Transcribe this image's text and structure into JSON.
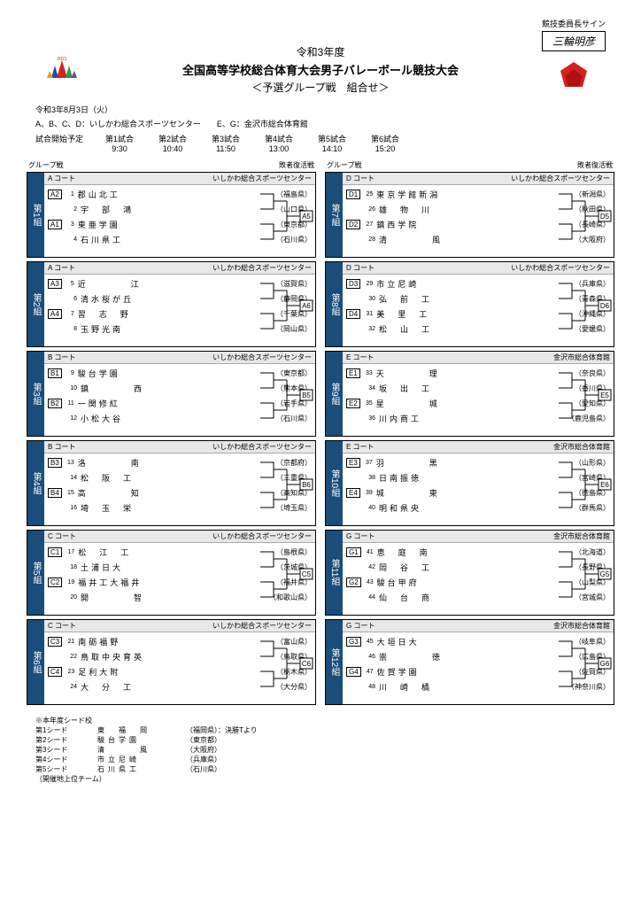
{
  "signature_label": "競技委員長サイン",
  "signature_value": "三輪明彦",
  "year_line": "令和3年度",
  "title": "全国高等学校総合体育大会男子バレーボール競技大会",
  "subtitle": "＜予選グループ戦　組合せ＞",
  "date": "令和3年8月3日（火）",
  "venue_line": "A、B、C、D：いしかわ総合スポーツセンター　　E、G：金沢市総合体育館",
  "schedule_label": "試合開始予定",
  "schedule": [
    {
      "label": "第1試合",
      "time": "9:30"
    },
    {
      "label": "第2試合",
      "time": "10:40"
    },
    {
      "label": "第3試合",
      "time": "11:50"
    },
    {
      "label": "第4試合",
      "time": "13:00"
    },
    {
      "label": "第5試合",
      "time": "14:10"
    },
    {
      "label": "第6試合",
      "time": "15:20"
    }
  ],
  "col_headers": {
    "left": "グループ戦",
    "right": "敗者復活戦"
  },
  "venues": {
    "ishikawa": "いしかわ総合スポーツセンター",
    "kanazawa": "金沢市総合体育館"
  },
  "left_groups": [
    {
      "label": "第1組",
      "court": "A コート",
      "venue": "ishikawa",
      "adv": "A5",
      "pairs": [
        {
          "seed": "A2",
          "teams": [
            {
              "n": "1",
              "name": "郡山北工",
              "pref": "福島県"
            },
            {
              "n": "2",
              "name": "宇部鴻",
              "pref": "山口県"
            }
          ]
        },
        {
          "seed": "A1",
          "teams": [
            {
              "n": "3",
              "name": "東亜学園",
              "pref": "東京都"
            },
            {
              "n": "4",
              "name": "石川県工",
              "pref": "石川県"
            }
          ]
        }
      ]
    },
    {
      "label": "第2組",
      "court": "A コート",
      "venue": "ishikawa",
      "adv": "A6",
      "pairs": [
        {
          "seed": "A3",
          "teams": [
            {
              "n": "5",
              "name": "近江",
              "pref": "滋賀県"
            },
            {
              "n": "6",
              "name": "清水桜が丘",
              "pref": "静岡県"
            }
          ]
        },
        {
          "seed": "A4",
          "teams": [
            {
              "n": "7",
              "name": "習志野",
              "pref": "千葉県"
            },
            {
              "n": "8",
              "name": "玉野光南",
              "pref": "岡山県"
            }
          ]
        }
      ]
    },
    {
      "label": "第3組",
      "court": "B コート",
      "venue": "ishikawa",
      "adv": "B5",
      "pairs": [
        {
          "seed": "B1",
          "teams": [
            {
              "n": "9",
              "name": "駿台学園",
              "pref": "東京都"
            },
            {
              "n": "10",
              "name": "鎮西",
              "pref": "熊本県"
            }
          ]
        },
        {
          "seed": "B2",
          "teams": [
            {
              "n": "11",
              "name": "一関修紅",
              "pref": "岩手県"
            },
            {
              "n": "12",
              "name": "小松大谷",
              "pref": "石川県"
            }
          ]
        }
      ]
    },
    {
      "label": "第4組",
      "court": "B コート",
      "venue": "ishikawa",
      "adv": "B6",
      "pairs": [
        {
          "seed": "B3",
          "teams": [
            {
              "n": "13",
              "name": "洛南",
              "pref": "京都府"
            },
            {
              "n": "14",
              "name": "松阪工",
              "pref": "三重県"
            }
          ]
        },
        {
          "seed": "B4",
          "teams": [
            {
              "n": "15",
              "name": "高知",
              "pref": "高知県"
            },
            {
              "n": "16",
              "name": "埼玉栄",
              "pref": "埼玉県"
            }
          ]
        }
      ]
    },
    {
      "label": "第5組",
      "court": "C コート",
      "venue": "ishikawa",
      "adv": "C5",
      "pairs": [
        {
          "seed": "C1",
          "teams": [
            {
              "n": "17",
              "name": "松江工",
              "pref": "島根県"
            },
            {
              "n": "18",
              "name": "土浦日大",
              "pref": "茨城県"
            }
          ]
        },
        {
          "seed": "C2",
          "teams": [
            {
              "n": "19",
              "name": "福井工大福井",
              "pref": "福井県"
            },
            {
              "n": "20",
              "name": "開智",
              "pref": "和歌山県"
            }
          ]
        }
      ]
    },
    {
      "label": "第6組",
      "court": "C コート",
      "venue": "ishikawa",
      "adv": "C6",
      "pairs": [
        {
          "seed": "C3",
          "teams": [
            {
              "n": "21",
              "name": "南砺福野",
              "pref": "富山県"
            },
            {
              "n": "22",
              "name": "鳥取中央育英",
              "pref": "鳥取県"
            }
          ]
        },
        {
          "seed": "C4",
          "teams": [
            {
              "n": "23",
              "name": "足利大附",
              "pref": "栃木県"
            },
            {
              "n": "24",
              "name": "大分工",
              "pref": "大分県"
            }
          ]
        }
      ]
    }
  ],
  "right_groups": [
    {
      "label": "第7組",
      "court": "D コート",
      "venue": "ishikawa",
      "adv": "D5",
      "pairs": [
        {
          "seed": "D1",
          "teams": [
            {
              "n": "25",
              "name": "東京学館新潟",
              "pref": "新潟県"
            },
            {
              "n": "26",
              "name": "雄物川",
              "pref": "秋田県"
            }
          ]
        },
        {
          "seed": "D2",
          "teams": [
            {
              "n": "27",
              "name": "鎮西学院",
              "pref": "長崎県"
            },
            {
              "n": "28",
              "name": "清風",
              "pref": "大阪府"
            }
          ]
        }
      ]
    },
    {
      "label": "第8組",
      "court": "D コート",
      "venue": "ishikawa",
      "adv": "D6",
      "pairs": [
        {
          "seed": "D3",
          "teams": [
            {
              "n": "29",
              "name": "市立尼崎",
              "pref": "兵庫県"
            },
            {
              "n": "30",
              "name": "弘前工",
              "pref": "青森県"
            }
          ]
        },
        {
          "seed": "D4",
          "teams": [
            {
              "n": "31",
              "name": "美里工",
              "pref": "沖縄県"
            },
            {
              "n": "32",
              "name": "松山工",
              "pref": "愛媛県"
            }
          ]
        }
      ]
    },
    {
      "label": "第9組",
      "court": "E コート",
      "venue": "kanazawa",
      "adv": "E5",
      "pairs": [
        {
          "seed": "E1",
          "teams": [
            {
              "n": "33",
              "name": "天理",
              "pref": "奈良県"
            },
            {
              "n": "34",
              "name": "坂出工",
              "pref": "香川県"
            }
          ]
        },
        {
          "seed": "E2",
          "teams": [
            {
              "n": "35",
              "name": "星城",
              "pref": "愛知県"
            },
            {
              "n": "36",
              "name": "川内商工",
              "pref": "鹿児島県"
            }
          ]
        }
      ]
    },
    {
      "label": "第10組",
      "court": "E コート",
      "venue": "kanazawa",
      "adv": "E6",
      "pairs": [
        {
          "seed": "E3",
          "teams": [
            {
              "n": "37",
              "name": "羽黒",
              "pref": "山形県"
            },
            {
              "n": "38",
              "name": "日南振徳",
              "pref": "宮崎県"
            }
          ]
        },
        {
          "seed": "E4",
          "teams": [
            {
              "n": "39",
              "name": "城東",
              "pref": "徳島県"
            },
            {
              "n": "40",
              "name": "明和県央",
              "pref": "群馬県"
            }
          ]
        }
      ]
    },
    {
      "label": "第11組",
      "court": "G コート",
      "venue": "kanazawa",
      "adv": "G5",
      "pairs": [
        {
          "seed": "G1",
          "teams": [
            {
              "n": "41",
              "name": "恵庭南",
              "pref": "北海道"
            },
            {
              "n": "42",
              "name": "岡谷工",
              "pref": "長野県"
            }
          ]
        },
        {
          "seed": "G2",
          "teams": [
            {
              "n": "43",
              "name": "駿台甲府",
              "pref": "山梨県"
            },
            {
              "n": "44",
              "name": "仙台商",
              "pref": "宮城県"
            }
          ]
        }
      ]
    },
    {
      "label": "第12組",
      "court": "G コート",
      "venue": "kanazawa",
      "adv": "G6",
      "pairs": [
        {
          "seed": "G3",
          "teams": [
            {
              "n": "45",
              "name": "大垣日大",
              "pref": "岐阜県"
            },
            {
              "n": "46",
              "name": "崇徳",
              "pref": "広島県"
            }
          ]
        },
        {
          "seed": "G4",
          "teams": [
            {
              "n": "47",
              "name": "佐賀学園",
              "pref": "佐賀県"
            },
            {
              "n": "48",
              "name": "川崎橘",
              "pref": "神奈川県"
            }
          ]
        }
      ]
    }
  ],
  "footer_title": "※本年度シード校",
  "seeds": [
    {
      "label": "第1シード",
      "team": "東福岡",
      "pref": "福岡県",
      "note": "：決勝Tより"
    },
    {
      "label": "第2シード",
      "team": "駿台学園",
      "pref": "東京都",
      "note": ""
    },
    {
      "label": "第3シード",
      "team": "清風",
      "pref": "大阪府",
      "note": ""
    },
    {
      "label": "第4シード",
      "team": "市立尼崎",
      "pref": "兵庫県",
      "note": ""
    },
    {
      "label": "第5シード",
      "team": "石川県工",
      "pref": "石川県",
      "note": ""
    }
  ],
  "footer_note": "（開催地上位チーム）",
  "colors": {
    "group_bg": "#1a4d7a",
    "red": "#d82020"
  }
}
